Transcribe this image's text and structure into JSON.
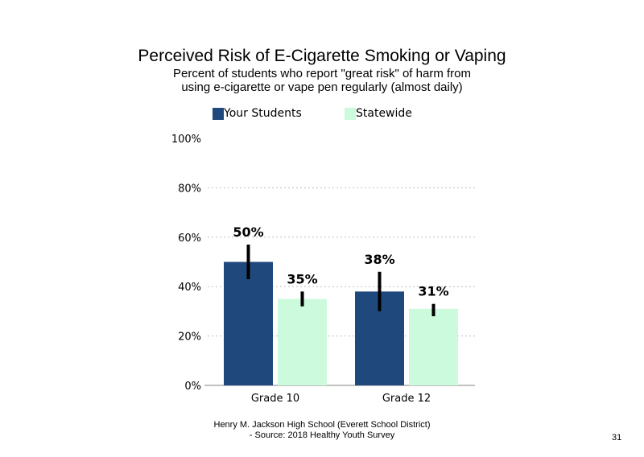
{
  "chart_data": {
    "type": "bar",
    "title": "Perceived Risk of E-Cigarette Smoking or Vaping",
    "subtitle_lines": [
      "Percent of students who report \"great risk\" of harm from",
      "using e-cigarette or vape pen regularly (almost daily)"
    ],
    "categories": [
      "Grade 10",
      "Grade 12"
    ],
    "series": [
      {
        "name": "Your Students",
        "color": "#1f497d",
        "values": [
          50,
          38
        ],
        "labels": [
          "50%",
          "38%"
        ],
        "error_low": [
          43,
          30
        ],
        "error_high": [
          57,
          46
        ]
      },
      {
        "name": "Statewide",
        "color": "#ccfadc",
        "values": [
          35,
          31
        ],
        "labels": [
          "35%",
          "31%"
        ],
        "error_low": [
          32,
          28
        ],
        "error_high": [
          38,
          33
        ]
      }
    ],
    "ylim": [
      0,
      100
    ],
    "yticks": [
      0,
      20,
      40,
      60,
      80,
      100
    ],
    "ytick_labels": [
      "0%",
      "20%",
      "40%",
      "60%",
      "80%",
      "100%"
    ],
    "grid": "dotted horizontal",
    "legend_position": "top"
  },
  "footer": {
    "line1": "Henry M. Jackson High School (Everett School District)",
    "line2": "- Source: 2018 Healthy Youth Survey"
  },
  "page_number": "31"
}
